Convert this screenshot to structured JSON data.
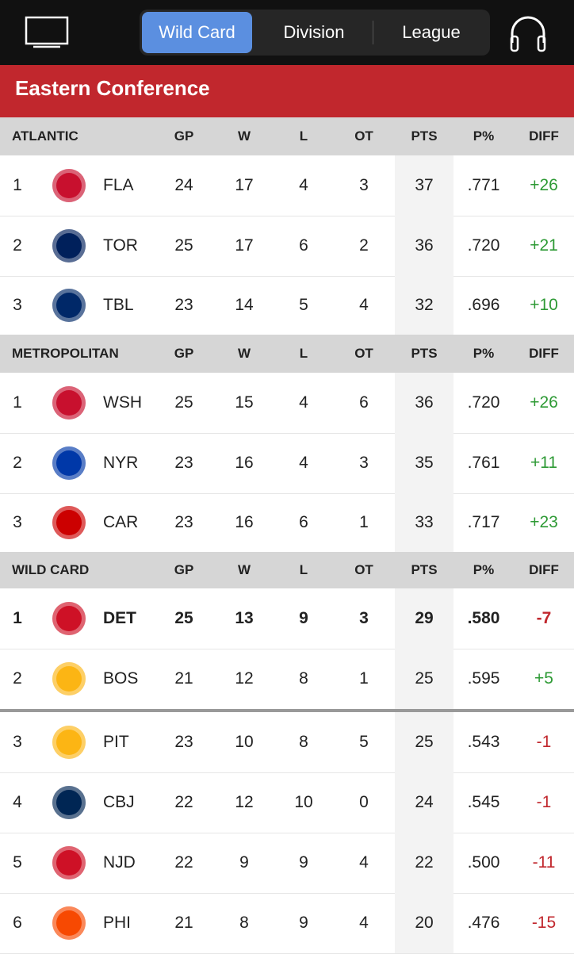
{
  "tabs": [
    {
      "label": "Wild Card",
      "active": true
    },
    {
      "label": "Division",
      "active": false
    },
    {
      "label": "League",
      "active": false
    }
  ],
  "conference": "Eastern Conference",
  "columns": [
    "GP",
    "W",
    "L",
    "OT",
    "PTS",
    "P%",
    "DIFF"
  ],
  "sections": [
    {
      "name": "ATLANTIC",
      "rows": [
        {
          "rank": 1,
          "team": "FLA",
          "color": "#c8102e",
          "stats": [
            24,
            17,
            4,
            3,
            37,
            ".771",
            "+26"
          ]
        },
        {
          "rank": 2,
          "team": "TOR",
          "color": "#00205b",
          "stats": [
            25,
            17,
            6,
            2,
            36,
            ".720",
            "+21"
          ]
        },
        {
          "rank": 3,
          "team": "TBL",
          "color": "#002868",
          "stats": [
            23,
            14,
            5,
            4,
            32,
            ".696",
            "+10"
          ]
        }
      ]
    },
    {
      "name": "METROPOLITAN",
      "rows": [
        {
          "rank": 1,
          "team": "WSH",
          "color": "#c8102e",
          "stats": [
            25,
            15,
            4,
            6,
            36,
            ".720",
            "+26"
          ]
        },
        {
          "rank": 2,
          "team": "NYR",
          "color": "#0038a8",
          "stats": [
            23,
            16,
            4,
            3,
            35,
            ".761",
            "+11"
          ]
        },
        {
          "rank": 3,
          "team": "CAR",
          "color": "#cc0000",
          "stats": [
            23,
            16,
            6,
            1,
            33,
            ".717",
            "+23"
          ]
        }
      ]
    },
    {
      "name": "WILD CARD",
      "rows": [
        {
          "rank": 1,
          "team": "DET",
          "color": "#ce1126",
          "bold": true,
          "stats": [
            25,
            13,
            9,
            3,
            29,
            ".580",
            "-7"
          ]
        },
        {
          "rank": 2,
          "team": "BOS",
          "color": "#fcb514",
          "stats": [
            21,
            12,
            8,
            1,
            25,
            ".595",
            "+5"
          ]
        }
      ],
      "rows_below": [
        {
          "rank": 3,
          "team": "PIT",
          "color": "#fcb514",
          "stats": [
            23,
            10,
            8,
            5,
            25,
            ".543",
            "-1"
          ]
        },
        {
          "rank": 4,
          "team": "CBJ",
          "color": "#002654",
          "stats": [
            22,
            12,
            10,
            0,
            24,
            ".545",
            "-1"
          ]
        },
        {
          "rank": 5,
          "team": "NJD",
          "color": "#ce1126",
          "stats": [
            22,
            9,
            9,
            4,
            22,
            ".500",
            "-11"
          ]
        },
        {
          "rank": 6,
          "team": "PHI",
          "color": "#f74902",
          "stats": [
            21,
            8,
            9,
            4,
            20,
            ".476",
            "-15"
          ]
        }
      ]
    }
  ]
}
